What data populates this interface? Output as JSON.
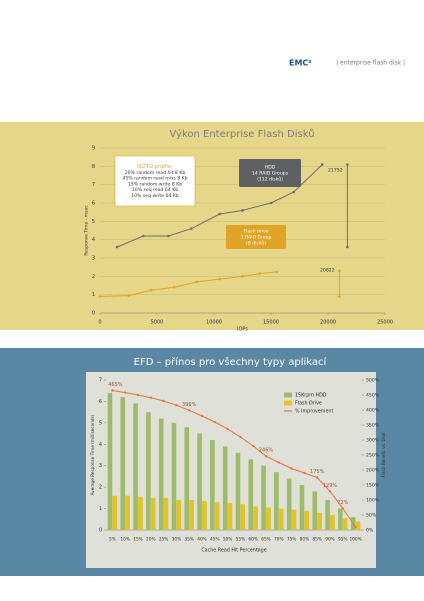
{
  "header": {
    "brand": "EMC²",
    "tagline": "| enterprise flash disk |"
  },
  "chart_data": [
    {
      "type": "line",
      "title": "Výkon Enterprise Flash Disků",
      "x_label": "IOPs",
      "y_label": "Response Time - msec",
      "xlim": [
        0,
        25000
      ],
      "xticks": [
        0,
        5000,
        10000,
        15000,
        20000,
        25000
      ],
      "ylim": [
        0,
        9
      ],
      "yticks": [
        0,
        1,
        2,
        3,
        4,
        5,
        6,
        7,
        8,
        9
      ],
      "grid": true,
      "series": [
        {
          "color": "#6d6e71",
          "x": [
            1500,
            3800,
            6000,
            8000,
            10500,
            12500,
            15000,
            17000,
            19500
          ],
          "values": [
            3.6,
            4.2,
            4.2,
            4.6,
            5.4,
            5.6,
            6.0,
            6.6,
            8.1
          ]
        },
        {
          "color": "#6d6e71",
          "x": [
            21700,
            21700
          ],
          "values": [
            8.1,
            3.6
          ]
        },
        {
          "color": "#e0a526",
          "x": [
            0,
            2500,
            4500,
            6500,
            8500,
            10500,
            12500,
            14000,
            15500
          ],
          "values": [
            0.9,
            0.95,
            1.25,
            1.4,
            1.7,
            1.85,
            2.0,
            2.15,
            2.25
          ]
        },
        {
          "color": "#e0a526",
          "x": [
            21000,
            21000
          ],
          "values": [
            2.3,
            0.9
          ]
        }
      ],
      "annotations": [
        {
          "lines": [
            "OLTP2 profile:",
            "20% random read hit 8 Kb",
            "45% random read miss 8 Kb",
            "15% random write 8 Kb",
            "10% seq read 64 Kb",
            "10% seq write 64 Kb"
          ]
        },
        {
          "lines": [
            "HDD",
            "14 RAID Groups",
            "(112 disků)"
          ]
        },
        {
          "lines": [
            "Flash drive",
            "1 RAID Group",
            "(8 disků)"
          ]
        },
        {
          "lines": [
            "21752"
          ]
        },
        {
          "lines": [
            "20822"
          ]
        }
      ]
    },
    {
      "type": "bar",
      "title": "EFD – přínos pro všechny typy aplikací",
      "x_label": "Cache Read Hit Percentage",
      "y_label": "Average Response Time (milliseconds)",
      "y2_label": "Flash Benefit vs. Disk",
      "categories": [
        "5%",
        "10%",
        "15%",
        "20%",
        "25%",
        "30%",
        "35%",
        "40%",
        "45%",
        "50%",
        "55%",
        "60%",
        "65%",
        "70%",
        "75%",
        "80%",
        "85%",
        "90%",
        "95%",
        "100%"
      ],
      "ylim": [
        0,
        7
      ],
      "yticks": [
        0,
        1,
        2,
        3,
        4,
        5,
        6,
        7
      ],
      "y2lim": [
        0,
        500
      ],
      "y2ticks": [
        {
          "value": 0,
          "label": "0%"
        },
        {
          "value": 50,
          "label": "50%"
        },
        {
          "value": 100,
          "label": "100%"
        },
        {
          "value": 150,
          "label": "150%"
        },
        {
          "value": 200,
          "label": "200%"
        },
        {
          "value": 250,
          "label": "250%"
        },
        {
          "value": 300,
          "label": "300%"
        },
        {
          "value": 350,
          "label": "350%"
        },
        {
          "value": 400,
          "label": "400%"
        },
        {
          "value": 450,
          "label": "450%"
        },
        {
          "value": 500,
          "label": "500%"
        }
      ],
      "legend": "upper right",
      "series": [
        {
          "name": "15Krpm HDD",
          "color": "#9dbb6a",
          "values": [
            6.4,
            6.2,
            5.9,
            5.5,
            5.2,
            5.0,
            4.8,
            4.5,
            4.2,
            3.9,
            3.6,
            3.3,
            3.0,
            2.7,
            2.4,
            2.1,
            1.8,
            1.4,
            1.0,
            0.6
          ]
        },
        {
          "name": "Flash Drive",
          "color": "#e3c22a",
          "values": [
            1.6,
            1.6,
            1.55,
            1.5,
            1.5,
            1.4,
            1.4,
            1.35,
            1.3,
            1.25,
            1.2,
            1.1,
            1.05,
            1.0,
            0.95,
            0.9,
            0.8,
            0.7,
            0.55,
            0.4
          ]
        },
        {
          "name": "% Improvement",
          "color": "#e8743b",
          "axis": "y2",
          "values": [
            465,
            458,
            450,
            441,
            430,
            416,
            399,
            380,
            360,
            337,
            310,
            280,
            246,
            225,
            205,
            190,
            175,
            129,
            72,
            10
          ],
          "value_labels": [
            "465%",
            null,
            null,
            null,
            null,
            null,
            "399%",
            null,
            null,
            null,
            null,
            null,
            "246%",
            null,
            null,
            null,
            "175%",
            "129%",
            "72%",
            null
          ]
        }
      ]
    }
  ]
}
